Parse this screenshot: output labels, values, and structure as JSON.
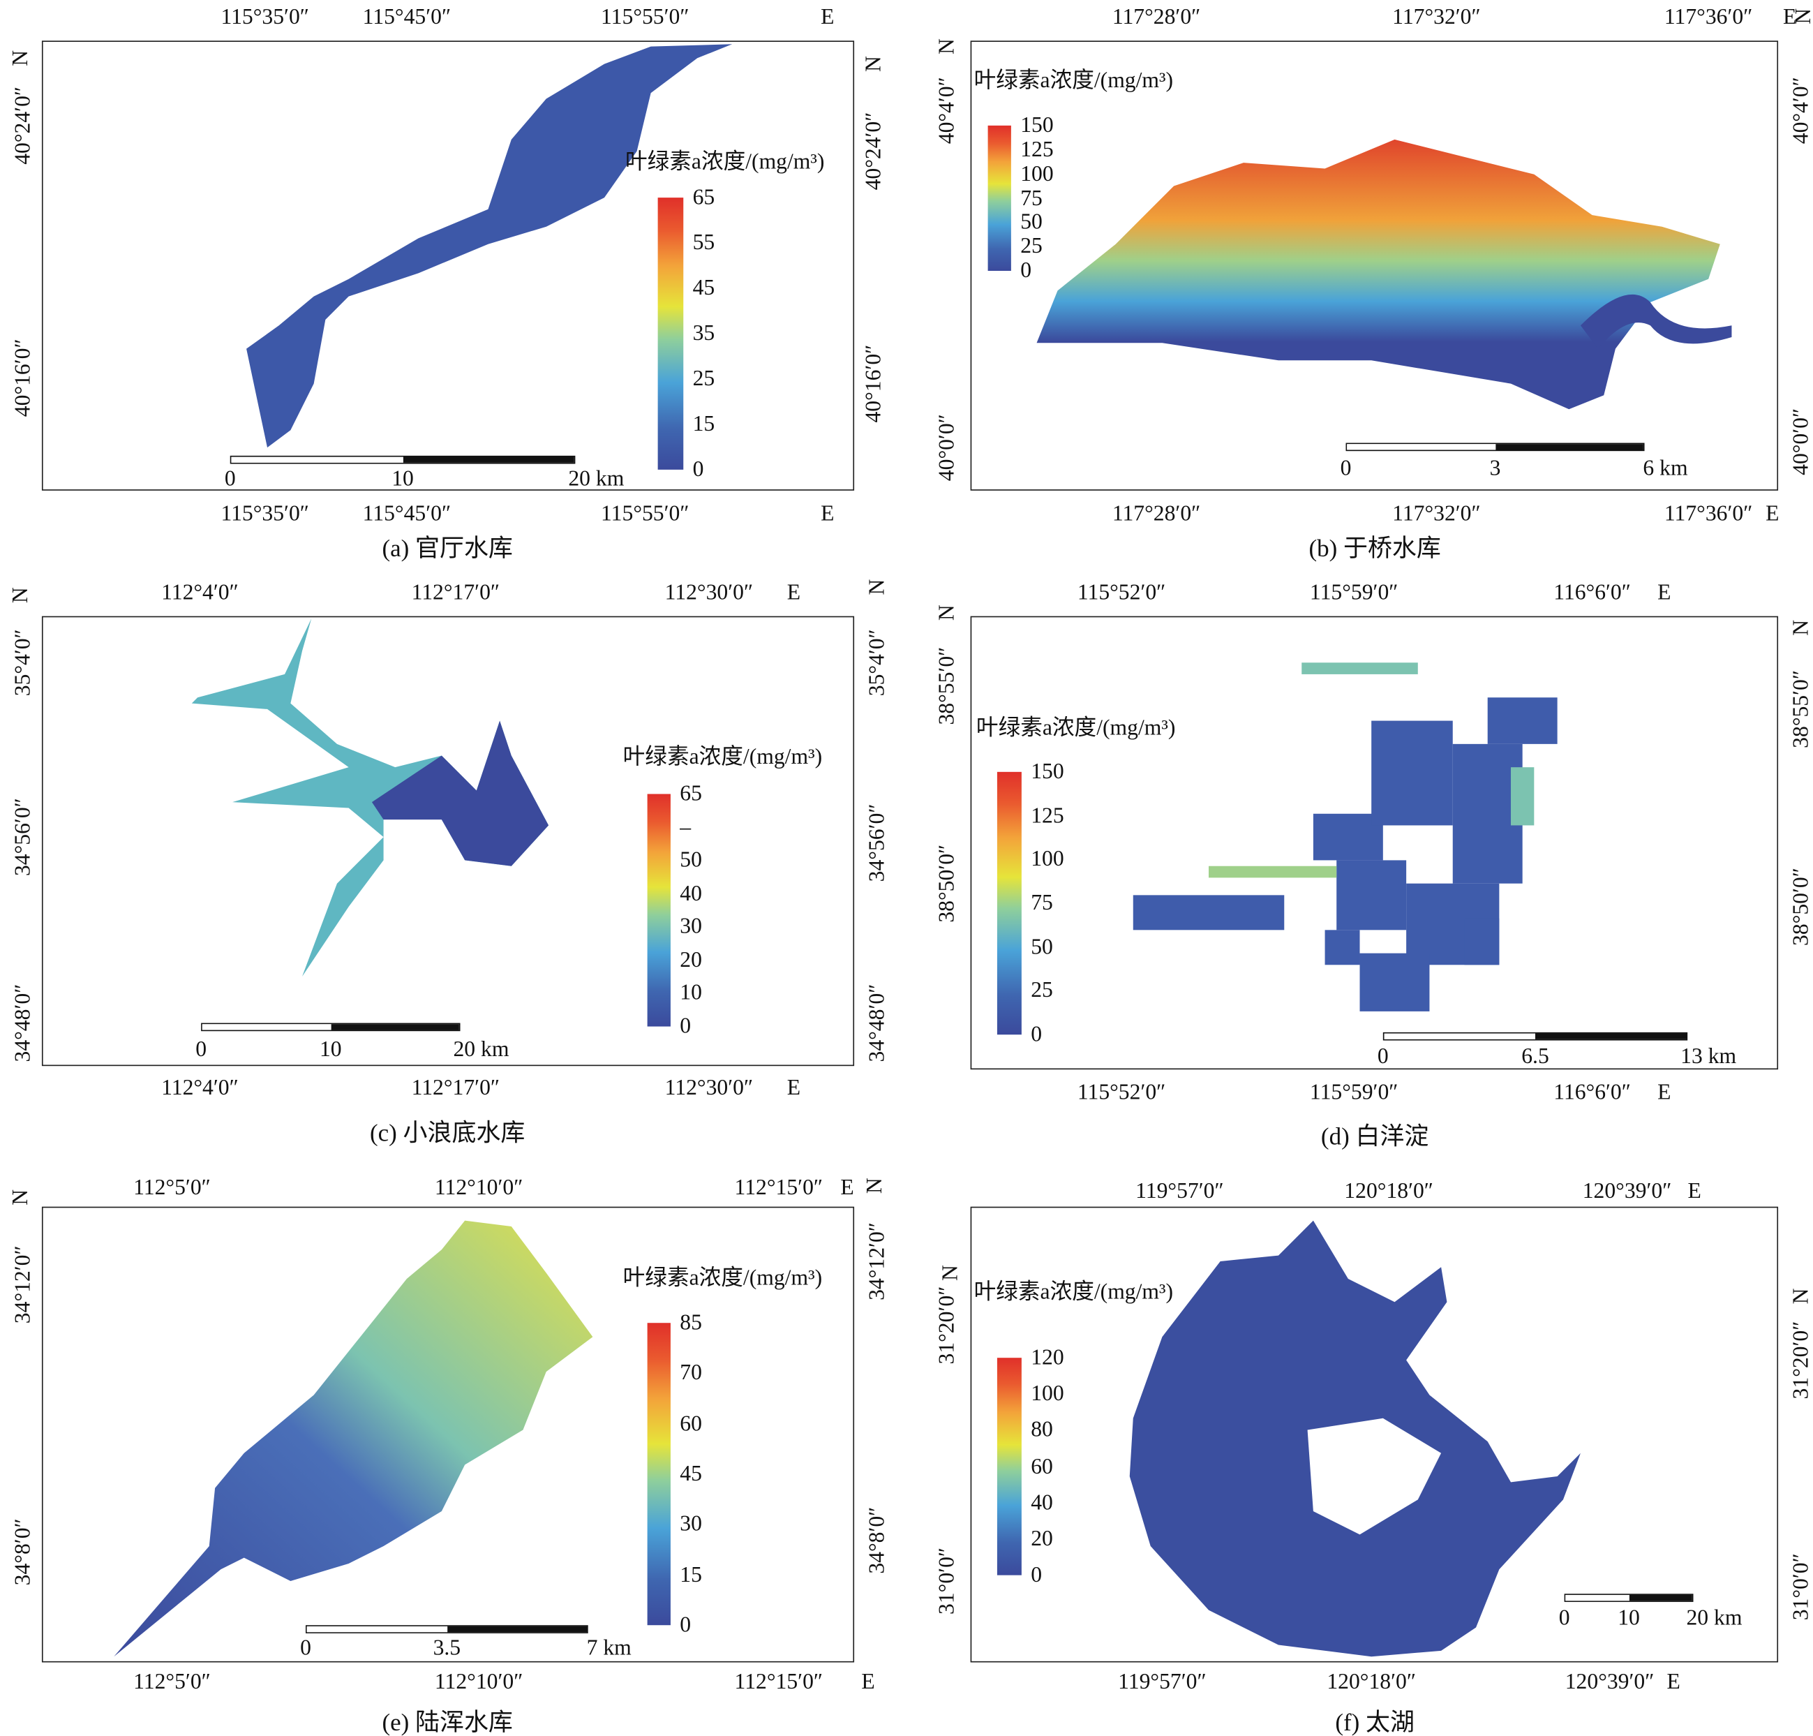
{
  "panels": [
    {
      "caption": "(a) 官厅水库",
      "lon_top": [
        "115°35′0″",
        "115°45′0″",
        "115°55′0″"
      ],
      "lon_bottom": [
        "115°35′0″",
        "115°45′0″",
        "115°55′0″"
      ],
      "lat_left": [
        "40°24′0″",
        "40°16′0″"
      ],
      "lat_right": [
        "40°24′0″",
        "40°16′0″"
      ],
      "east": "E",
      "north": "N",
      "legend": {
        "title": "叶绿素a浓度/(mg/m³)",
        "ticks": [
          "65",
          "55",
          "45",
          "35",
          "25",
          "15",
          "0"
        ]
      },
      "scale": [
        "0",
        "10",
        "20 km"
      ]
    },
    {
      "caption": "(b) 于桥水库",
      "lon_top": [
        "117°28′0″",
        "117°32′0″",
        "117°36′0″"
      ],
      "lon_bottom": [
        "117°28′0″",
        "117°32′0″",
        "117°36′0″"
      ],
      "lat_left": [
        "40°4′0″",
        "40°0′0″"
      ],
      "lat_right": [
        "40°4′0″",
        "40°0′0″"
      ],
      "east": "E",
      "north": "N",
      "legend": {
        "title": "叶绿素a浓度/(mg/m³)",
        "ticks": [
          "150",
          "125",
          "100",
          "75",
          "50",
          "25",
          "0"
        ]
      },
      "scale": [
        "0",
        "3",
        "6 km"
      ]
    },
    {
      "caption": "(c) 小浪底水库",
      "lon_top": [
        "112°4′0″",
        "112°17′0″",
        "112°30′0″"
      ],
      "lon_bottom": [
        "112°4′0″",
        "112°17′0″",
        "112°30′0″"
      ],
      "lat_left": [
        "35°4′0″",
        "34°56′0″",
        "34°48′0″"
      ],
      "lat_right": [
        "35°4′0″",
        "34°56′0″",
        "34°48′0″"
      ],
      "east": "E",
      "north": "N",
      "legend": {
        "title": "叶绿素a浓度/(mg/m³)",
        "ticks": [
          "65",
          "–",
          "50",
          "40",
          "30",
          "20",
          "10",
          "0"
        ]
      },
      "scale": [
        "0",
        "10",
        "20 km"
      ]
    },
    {
      "caption": "(d) 白洋淀",
      "lon_top": [
        "115°52′0″",
        "115°59′0″",
        "116°6′0″"
      ],
      "lon_bottom": [
        "115°52′0″",
        "115°59′0″",
        "116°6′0″"
      ],
      "lat_left": [
        "38°55′0″",
        "38°50′0″"
      ],
      "lat_right": [
        "38°55′0″",
        "38°50′0″"
      ],
      "east": "E",
      "north": "N",
      "legend": {
        "title": "叶绿素a浓度/(mg/m³)",
        "ticks": [
          "150",
          "125",
          "100",
          "75",
          "50",
          "25",
          "0"
        ]
      },
      "scale": [
        "0",
        "6.5",
        "13 km"
      ]
    },
    {
      "caption": "(e) 陆浑水库",
      "lon_top": [
        "112°5′0″",
        "112°10′0″",
        "112°15′0″"
      ],
      "lon_bottom": [
        "112°5′0″",
        "112°10′0″",
        "112°15′0″"
      ],
      "lat_left": [
        "34°12′0″",
        "34°8′0″"
      ],
      "lat_right": [
        "34°12′0″",
        "34°8′0″"
      ],
      "east": "E",
      "north": "N",
      "legend": {
        "title": "叶绿素a浓度/(mg/m³)",
        "ticks": [
          "85",
          "70",
          "60",
          "45",
          "30",
          "15",
          "0"
        ]
      },
      "scale": [
        "0",
        "3.5",
        "7 km"
      ]
    },
    {
      "caption": "(f) 太湖",
      "lon_top": [
        "119°57′0″",
        "120°18′0″",
        "120°39′0″"
      ],
      "lon_bottom": [
        "119°57′0″",
        "120°18′0″",
        "120°39′0″"
      ],
      "lat_left": [
        "31°20′0″",
        "31°0′0″"
      ],
      "lat_right": [
        "31°20′0″",
        "31°0′0″"
      ],
      "east": "E",
      "north": "N",
      "legend": {
        "title": "叶绿素a浓度/(mg/m³)",
        "ticks": [
          "120",
          "100",
          "80",
          "60",
          "40",
          "20",
          "0"
        ]
      },
      "scale": [
        "0",
        "10",
        "20 km"
      ]
    }
  ]
}
